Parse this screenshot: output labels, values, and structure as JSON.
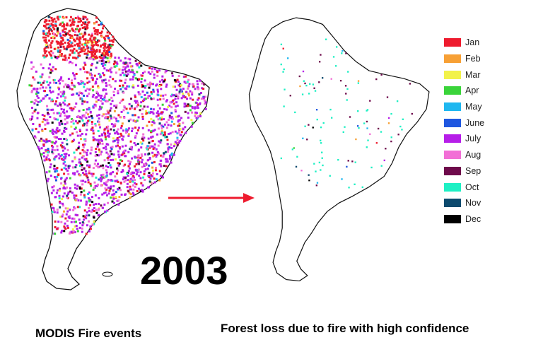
{
  "year": "2003",
  "left_caption": "MODIS Fire events",
  "right_caption": "Forest loss due to fire with high confidence",
  "legend": [
    {
      "label": "Jan",
      "color": "#ee1b2e"
    },
    {
      "label": "Feb",
      "color": "#f7a035"
    },
    {
      "label": "Mar",
      "color": "#f2f24a"
    },
    {
      "label": "Apr",
      "color": "#3ad43a"
    },
    {
      "label": "May",
      "color": "#1fb7f0"
    },
    {
      "label": "June",
      "color": "#1f57e0"
    },
    {
      "label": "July",
      "color": "#b61ee8"
    },
    {
      "label": "Aug",
      "color": "#f26fd6"
    },
    {
      "label": "Sep",
      "color": "#6e0a4b"
    },
    {
      "label": "Oct",
      "color": "#1ef0c4"
    },
    {
      "label": "Nov",
      "color": "#0d4a6e"
    },
    {
      "label": "Dec",
      "color": "#000000"
    }
  ],
  "arrow_color": "#ee1b2e"
}
